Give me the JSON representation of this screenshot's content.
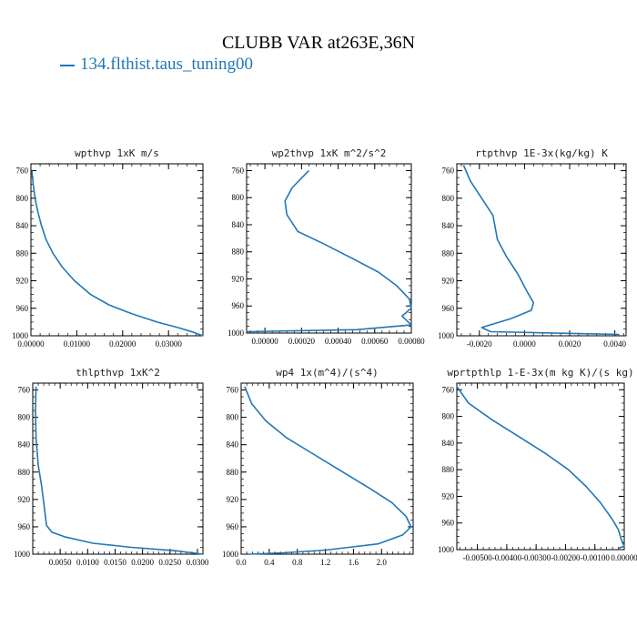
{
  "figure": {
    "title": "CLUBB VAR at263E,36N",
    "legend_label": "134.flthist.taus_tuning00",
    "line_color": "#1f77b4"
  },
  "chart_data": [
    {
      "type": "line",
      "title": "wpthvp   1xK m/s",
      "xlim": [
        0,
        0.0375
      ],
      "ylim": [
        1000,
        750
      ],
      "xticks": [
        0,
        0.01,
        0.02,
        0.03
      ],
      "xtick_labels": [
        "0.00000",
        "0.01000",
        "0.02000",
        "0.03000"
      ],
      "yticks": [
        760,
        800,
        840,
        880,
        920,
        960,
        1000
      ],
      "ytick_labels": [
        "760",
        "800",
        "840",
        "880",
        "920",
        "960",
        "1000"
      ],
      "series": [
        {
          "x": [
            0.0002,
            0.0005,
            0.0009,
            0.0015,
            0.0023,
            0.0033,
            0.0048,
            0.0068,
            0.0095,
            0.013,
            0.017,
            0.022,
            0.0275,
            0.032,
            0.0355,
            0.0375
          ],
          "y": [
            760,
            780,
            800,
            820,
            840,
            860,
            880,
            900,
            920,
            940,
            955,
            968,
            980,
            988,
            995,
            1000
          ]
        }
      ]
    },
    {
      "type": "line",
      "title": "wp2thvp   1xK m^2/s^2",
      "xlim": [
        -0.0001,
        0.0008
      ],
      "ylim": [
        1000,
        750
      ],
      "xticks": [
        0,
        0.0002,
        0.0004,
        0.0006,
        0.0008
      ],
      "xtick_labels": [
        "0.00000",
        "0.00020",
        "0.00040",
        "0.00060",
        "0.00080"
      ],
      "yticks": [
        760,
        800,
        840,
        880,
        920,
        960,
        1000
      ],
      "ytick_labels": [
        "760",
        "800",
        "840",
        "880",
        "920",
        "960",
        "1000"
      ],
      "series": [
        {
          "x": [
            0.00024,
            0.00015,
            0.00011,
            0.00012,
            0.00018,
            0.00032,
            0.00048,
            0.00062,
            0.00072,
            0.00079,
            0.0008,
            0.00075,
            0.0008,
            0.0005,
            -0.0001
          ],
          "y": [
            760,
            785,
            805,
            825,
            850,
            868,
            890,
            910,
            930,
            950,
            963,
            975,
            988,
            995,
            998
          ]
        }
      ]
    },
    {
      "type": "line",
      "title": "rtpthvp   1E-3x(kg/kg) K",
      "xlim": [
        -0.003,
        0.0045
      ],
      "ylim": [
        1000,
        750
      ],
      "xticks": [
        -0.002,
        0,
        0.002,
        0.004
      ],
      "xtick_labels": [
        "-0.0020",
        "0.0000",
        "0.0020",
        "0.0040"
      ],
      "yticks": [
        760,
        800,
        840,
        880,
        920,
        960,
        1000
      ],
      "ytick_labels": [
        "760",
        "800",
        "840",
        "880",
        "920",
        "960",
        "1000"
      ],
      "series": [
        {
          "x": [
            -0.0027,
            -0.0024,
            -0.0019,
            -0.0014,
            -0.0012,
            -0.0008,
            -0.0003,
            0.0001,
            0.0004,
            0.0003,
            -0.0006,
            -0.0019,
            -0.0015,
            0.0042
          ],
          "y": [
            752,
            775,
            800,
            825,
            860,
            885,
            910,
            935,
            952,
            963,
            975,
            988,
            994,
            998
          ]
        }
      ]
    },
    {
      "type": "line",
      "title": "thlpthvp   1xK^2",
      "xlim": [
        0,
        0.031
      ],
      "ylim": [
        1000,
        750
      ],
      "xticks": [
        0.005,
        0.01,
        0.015,
        0.02,
        0.025,
        0.03
      ],
      "xtick_labels": [
        "0.0050",
        "0.0100",
        "0.0150",
        "0.0200",
        "0.0250",
        "0.0300"
      ],
      "yticks": [
        760,
        800,
        840,
        880,
        920,
        960,
        1000
      ],
      "ytick_labels": [
        "760",
        "800",
        "840",
        "880",
        "920",
        "960",
        "1000"
      ],
      "series": [
        {
          "x": [
            0.0006,
            0.0005,
            0.0006,
            0.001,
            0.0016,
            0.002,
            0.0023,
            0.0025,
            0.0035,
            0.006,
            0.011,
            0.018,
            0.026,
            0.031
          ],
          "y": [
            755,
            790,
            830,
            870,
            900,
            925,
            945,
            958,
            968,
            975,
            984,
            990,
            995,
            1000
          ]
        }
      ]
    },
    {
      "type": "line",
      "title": "wp4   1x(m^4)/(s^4)",
      "xlim": [
        0,
        2.45
      ],
      "ylim": [
        1000,
        750
      ],
      "xticks": [
        0,
        0.4,
        0.8,
        1.2,
        1.6,
        2.0
      ],
      "xtick_labels": [
        "0.0",
        "0.4",
        "0.8",
        "1.2",
        "1.6",
        "2.0"
      ],
      "yticks": [
        760,
        800,
        840,
        880,
        920,
        960,
        1000
      ],
      "ytick_labels": [
        "760",
        "800",
        "840",
        "880",
        "920",
        "960",
        "1000"
      ],
      "series": [
        {
          "x": [
            0.05,
            0.15,
            0.35,
            0.65,
            1.05,
            1.45,
            1.85,
            2.15,
            2.35,
            2.42,
            2.3,
            1.95,
            1.2,
            0.6,
            0.1
          ],
          "y": [
            755,
            780,
            805,
            830,
            855,
            880,
            905,
            925,
            945,
            960,
            972,
            985,
            994,
            998,
            1000
          ]
        }
      ]
    },
    {
      "type": "line",
      "title": "wprtpthlp   1-E-3x(m kg K)/(s kg)",
      "xlim": [
        -0.0057,
        0
      ],
      "ylim": [
        1000,
        750
      ],
      "xticks": [
        -0.005,
        -0.004,
        -0.003,
        -0.002,
        -0.001,
        0
      ],
      "xtick_labels": [
        "-0.00500",
        "-0.00400",
        "-0.00300",
        "-0.00200",
        "-0.00100",
        "0.00000"
      ],
      "yticks": [
        760,
        800,
        840,
        880,
        920,
        960,
        1000
      ],
      "ytick_labels": [
        "760",
        "800",
        "840",
        "880",
        "920",
        "960",
        "1000"
      ],
      "series": [
        {
          "x": [
            -0.0057,
            -0.0053,
            -0.0045,
            -0.0036,
            -0.0027,
            -0.0019,
            -0.0013,
            -0.0008,
            -0.0004,
            -0.0002,
            -0.0001,
            0,
            -0.0002
          ],
          "y": [
            755,
            780,
            805,
            830,
            855,
            880,
            905,
            930,
            955,
            970,
            985,
            995,
            998
          ]
        }
      ]
    }
  ]
}
